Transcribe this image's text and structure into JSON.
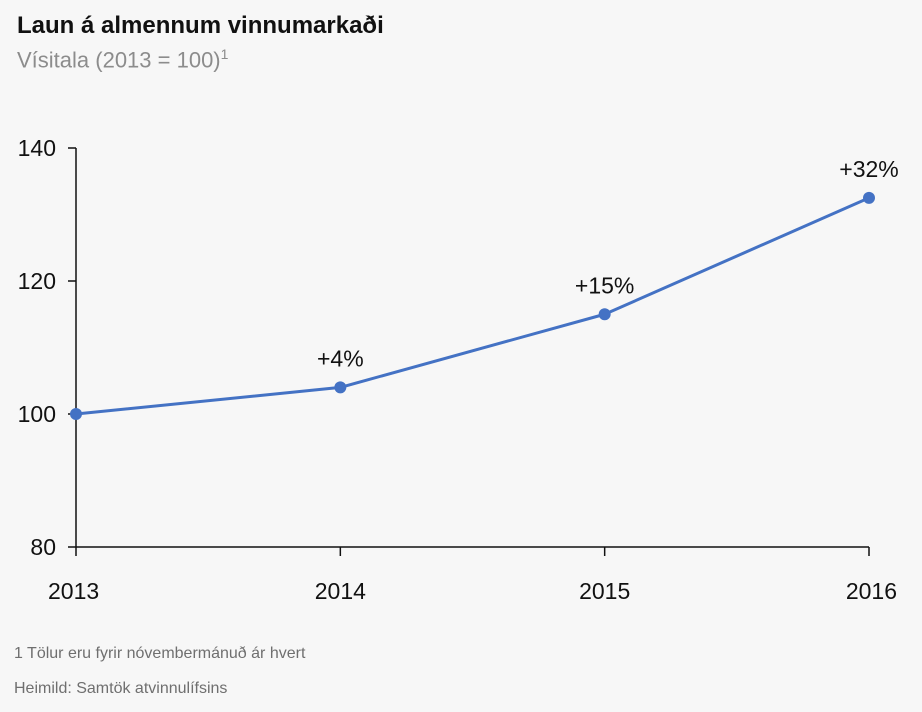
{
  "header": {
    "title": "Laun á almennum vinnumarkaði",
    "subtitle": "Vísitala (2013 = 100)",
    "subtitle_sup": "1"
  },
  "footer": {
    "footnote": "1 Tölur eru fyrir nóvembermánuð ár hvert",
    "source": "Heimild: Samtök atvinnulífsins"
  },
  "colors": {
    "series": "#4472c4",
    "axis": "#111111"
  },
  "chart_data": {
    "type": "line",
    "title": "Laun á almennum vinnumarkaði",
    "subtitle": "Vísitala (2013 = 100)",
    "categories": [
      "2013",
      "2014",
      "2015",
      "2016"
    ],
    "series": [
      {
        "values": [
          100,
          104,
          115,
          132.5
        ],
        "data_labels": [
          "",
          "+4%",
          "+15%",
          "+32%"
        ]
      }
    ],
    "ylim": [
      80,
      140
    ],
    "yticks": [
      "80",
      "100",
      "120",
      "140"
    ],
    "xlabel": "",
    "ylabel": "",
    "grid": false,
    "legend": "none"
  }
}
